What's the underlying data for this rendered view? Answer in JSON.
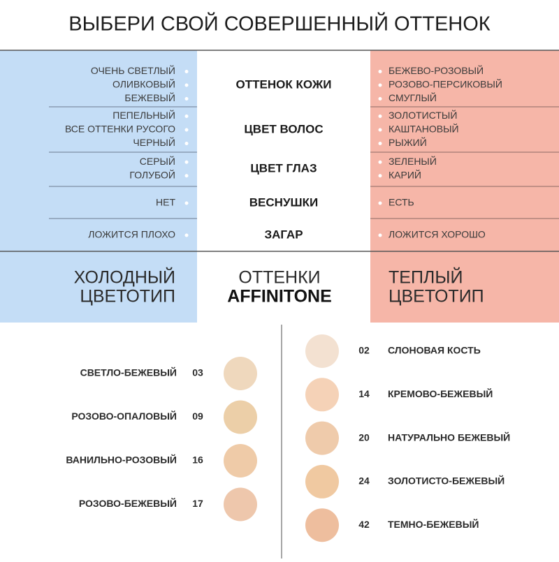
{
  "title": "ВЫБЕРИ СВОЙ СОВЕРШЕННЫЙ ОТТЕНОК",
  "comparison": {
    "rows": [
      {
        "label": "ОТТЕНОК КОЖИ",
        "cold": [
          "ОЧЕНЬ СВЕТЛЫЙ",
          "ОЛИВКОВЫЙ",
          "БЕЖЕВЫЙ"
        ],
        "warm": [
          "БЕЖЕВО-РОЗОВЫЙ",
          "РОЗОВО-ПЕРСИКОВЫЙ",
          "СМУГЛЫЙ"
        ]
      },
      {
        "label": "ЦВЕТ ВОЛОС",
        "cold": [
          "ПЕПЕЛЬНЫЙ",
          "ВСЕ ОТТЕНКИ РУСОГО",
          "ЧЕРНЫЙ"
        ],
        "warm": [
          "ЗОЛОТИСТЫЙ",
          "КАШТАНОВЫЙ",
          "РЫЖИЙ"
        ]
      },
      {
        "label": "ЦВЕТ ГЛАЗ",
        "cold": [
          "СЕРЫЙ",
          "ГОЛУБОЙ"
        ],
        "warm": [
          "ЗЕЛЕНЫЙ",
          "КАРИЙ"
        ]
      },
      {
        "label": "ВЕСНУШКИ",
        "cold": [
          "НЕТ"
        ],
        "warm": [
          "ЕСТЬ"
        ]
      },
      {
        "label": "ЗАГАР",
        "cold": [
          "ЛОЖИТСЯ ПЛОХО"
        ],
        "warm": [
          "ЛОЖИТСЯ ХОРОШО"
        ]
      }
    ],
    "footer": {
      "cold": [
        "ХОЛОДНЫЙ",
        "ЦВЕТОТИП"
      ],
      "center": [
        "ОТТЕНКИ",
        "AFFINITONE"
      ],
      "warm": [
        "ТЕПЛЫЙ",
        "ЦВЕТОТИП"
      ]
    }
  },
  "shades": {
    "cold": [
      {
        "name": "СВЕТЛО-БЕЖЕВЫЙ",
        "code": "03"
      },
      {
        "name": "РОЗОВО-ОПАЛОВЫЙ",
        "code": "09"
      },
      {
        "name": "ВАНИЛЬНО-РОЗОВЫЙ",
        "code": "16"
      },
      {
        "name": "РОЗОВО-БЕЖЕВЫЙ",
        "code": "17"
      }
    ],
    "warm": [
      {
        "name": "СЛОНОВАЯ КОСТЬ",
        "code": "02"
      },
      {
        "name": "КРЕМОВО-БЕЖЕВЫЙ",
        "code": "14"
      },
      {
        "name": "НАТУРАЛЬНО БЕЖЕВЫЙ",
        "code": "20"
      },
      {
        "name": "ЗОЛОТИСТО-БЕЖЕВЫЙ",
        "code": "24"
      },
      {
        "name": "ТЕМНО-БЕЖЕВЫЙ",
        "code": "42"
      }
    ]
  }
}
